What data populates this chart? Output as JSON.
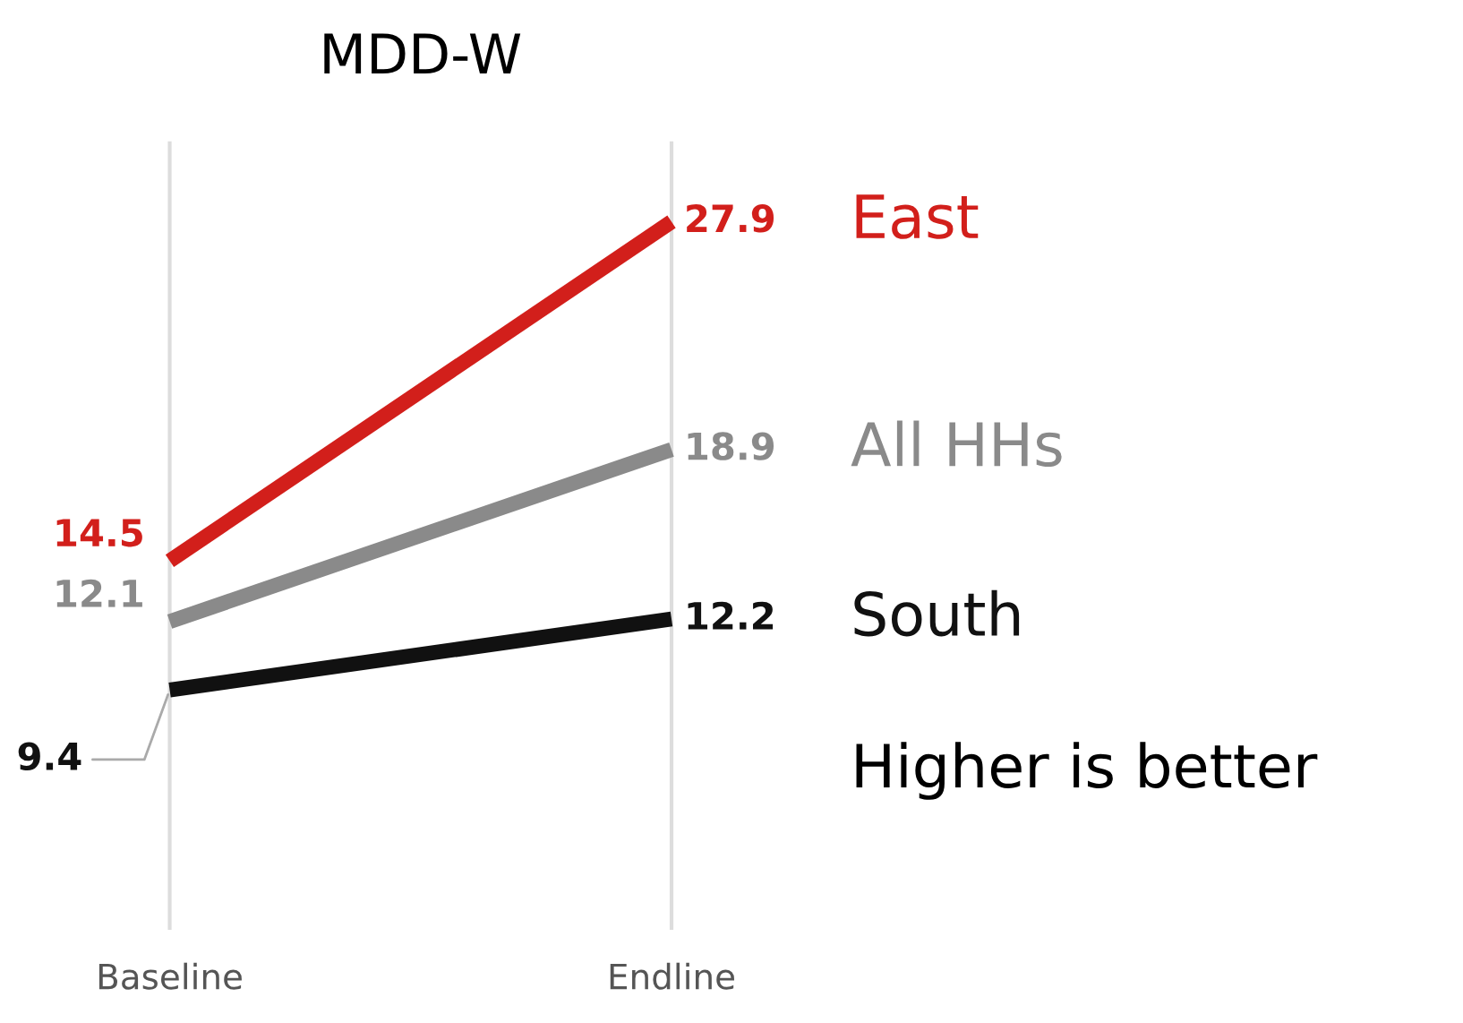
{
  "chart_data": {
    "type": "line",
    "title": "MDD-W",
    "categories": [
      "Baseline",
      "Endline"
    ],
    "series": [
      {
        "name": "East",
        "color": "#d21f1b",
        "values": [
          14.5,
          27.9
        ]
      },
      {
        "name": "All HHs",
        "color": "#8a8a8a",
        "values": [
          12.1,
          18.9
        ]
      },
      {
        "name": "South",
        "color": "#111111",
        "values": [
          9.4,
          12.2
        ]
      }
    ],
    "ylim": [
      0,
      31
    ],
    "data_labels": true,
    "legend": false,
    "grid": "x",
    "marker": "none",
    "line_style": "solid",
    "annotations": [
      "Higher is better"
    ]
  }
}
